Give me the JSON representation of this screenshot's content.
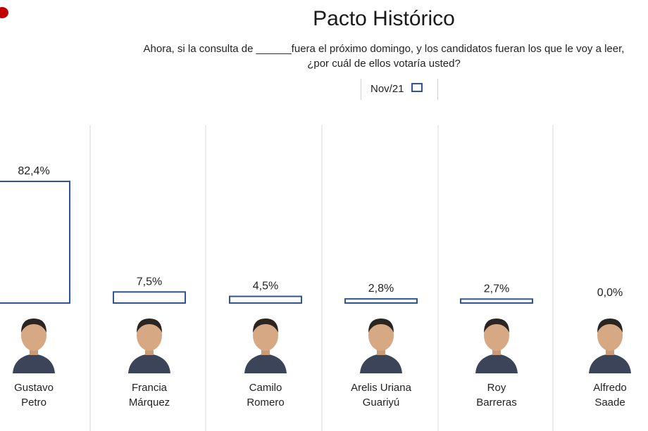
{
  "title": "Pacto Histórico",
  "question_line1": "Ahora, si la consulta de ______fuera el próximo domingo, y los candidatos fueran los que le voy a leer,",
  "question_line2": "¿por cuál de ellos votaría usted?",
  "legend": "Nov/21",
  "colors": {
    "bar_outline": "#2f5597",
    "accent": "#c00000",
    "divider": "#d9d9d9"
  },
  "candidates": [
    {
      "name1": "Gustavo",
      "name2": "Petro",
      "icon": "candidate-photo"
    },
    {
      "name1": "Francia",
      "name2": "Márquez",
      "icon": "candidate-photo"
    },
    {
      "name1": "Camilo",
      "name2": "Romero",
      "icon": "candidate-photo"
    },
    {
      "name1": "Arelis Uriana",
      "name2": "Guariyú",
      "icon": "candidate-photo"
    },
    {
      "name1": "Roy",
      "name2": "Barreras",
      "icon": "candidate-photo"
    },
    {
      "name1": "Alfredo",
      "name2": "Saade",
      "icon": "candidate-photo"
    }
  ],
  "chart_data": {
    "type": "bar",
    "categories": [
      "Gustavo Petro",
      "Francia Márquez",
      "Camilo Romero",
      "Arelis Uriana Guariyú",
      "Roy Barreras",
      "Alfredo Saade"
    ],
    "series": [
      {
        "name": "Nov/21",
        "values": [
          82.4,
          7.5,
          4.5,
          2.8,
          2.7,
          0.0
        ]
      }
    ],
    "data_labels": [
      "82,4%",
      "7,5%",
      "4,5%",
      "2,8%",
      "2,7%",
      "0,0%"
    ],
    "title": "Pacto Histórico",
    "ylim": [
      0,
      100
    ],
    "grid": false,
    "legend_position": "top-center"
  }
}
